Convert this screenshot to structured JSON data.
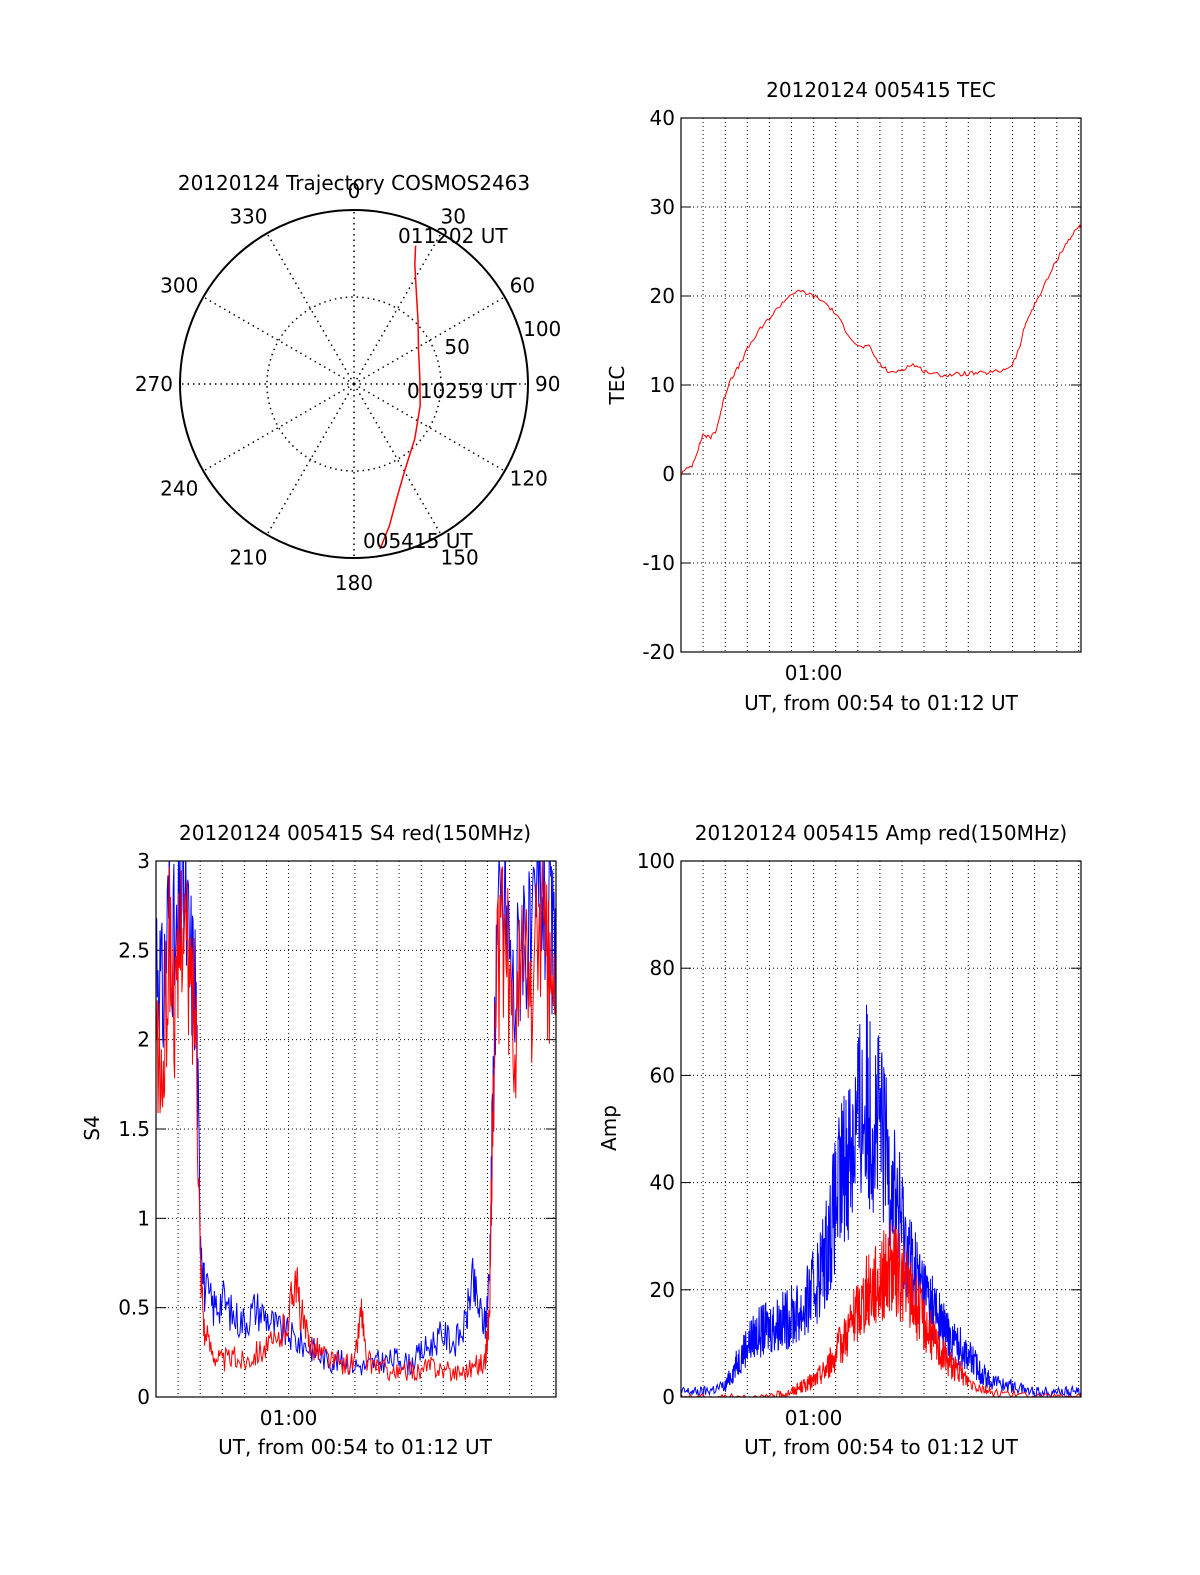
{
  "chart_data": [
    {
      "type": "polar",
      "title": "20120124 Trajectory COSMOS2463",
      "angle_labels": [
        "0",
        "30",
        "60",
        "90",
        "120",
        "150",
        "180",
        "210",
        "240",
        "270",
        "300",
        "330"
      ],
      "radial_labels": [
        "50",
        "100"
      ],
      "radial_max": 100,
      "grid": true,
      "series": [
        {
          "color": "#ff0000",
          "points": [
            {
              "az": 171,
              "r": 96
            },
            {
              "az": 166,
              "r": 84
            },
            {
              "az": 160,
              "r": 71
            },
            {
              "az": 150,
              "r": 58
            },
            {
              "az": 132,
              "r": 47
            },
            {
              "az": 108,
              "r": 40
            },
            {
              "az": 84,
              "r": 38
            },
            {
              "az": 62,
              "r": 42
            },
            {
              "az": 45,
              "r": 52
            },
            {
              "az": 34,
              "r": 64
            },
            {
              "az": 27,
              "r": 77
            },
            {
              "az": 24,
              "r": 87
            }
          ]
        }
      ],
      "annotations": [
        "011202 UT",
        "010259 UT",
        "005415 UT"
      ]
    },
    {
      "type": "line",
      "title": "20120124 005415 TEC",
      "xlabel": "UT, from 00:54 to 01:12 UT",
      "ylabel": "TEC",
      "xlim": [
        0,
        18.1
      ],
      "ylim": [
        -20,
        40
      ],
      "yticks": [
        "-20",
        "-10",
        "0",
        "10",
        "20",
        "30",
        "40"
      ],
      "xtick_labels": [
        {
          "x": 6.0,
          "label": "01:00"
        }
      ],
      "grid": true,
      "series": [
        {
          "color": "#ff0000",
          "x": [
            0,
            0.5,
            0.8,
            1.0,
            1.3,
            1.6,
            1.9,
            2.2,
            2.6,
            3.0,
            3.5,
            4.0,
            4.5,
            5.0,
            5.5,
            6.0,
            6.5,
            7.0,
            7.5,
            8.0,
            8.5,
            9.0,
            9.5,
            10.0,
            10.5,
            11.0,
            11.5,
            12.0,
            12.5,
            13.0,
            13.5,
            14.0,
            14.5,
            15.0,
            15.3,
            15.6,
            16.0,
            16.4,
            16.8,
            17.2,
            17.6,
            18.0,
            18.1
          ],
          "y": [
            0,
            1,
            3,
            4.5,
            4,
            5,
            8,
            10.5,
            12,
            14,
            16,
            17.5,
            19,
            20.3,
            20.5,
            20,
            19.3,
            18,
            16,
            14.3,
            14.3,
            12.3,
            11.3,
            11.8,
            12.3,
            11.6,
            11.2,
            11.1,
            11.2,
            11.3,
            11.3,
            11.4,
            11.6,
            12.3,
            14,
            17,
            19,
            21,
            23,
            25,
            26.5,
            27.8,
            28
          ]
        }
      ]
    },
    {
      "type": "line",
      "title": "20120124 005415 S4 red(150MHz)",
      "xlabel": "UT, from 00:54 to 01:12 UT",
      "ylabel": "S4",
      "xlim": [
        0,
        18.1
      ],
      "ylim": [
        0,
        3
      ],
      "yticks": [
        "0",
        "0.5",
        "1",
        "1.5",
        "2",
        "2.5",
        "3"
      ],
      "xtick_labels": [
        {
          "x": 6.0,
          "label": "01:00"
        }
      ],
      "grid": true,
      "series": [
        {
          "color": "#0000ff",
          "x": [
            0,
            0.3,
            0.6,
            0.9,
            1.2,
            1.5,
            1.8,
            2.0,
            2.2,
            2.6,
            3.0,
            3.5,
            4.0,
            4.5,
            5.0,
            5.5,
            6.0,
            6.5,
            7.0,
            7.5,
            8.0,
            8.5,
            9.0,
            9.5,
            10.0,
            10.5,
            11.0,
            11.5,
            12.0,
            12.5,
            13.0,
            13.5,
            14.0,
            14.3,
            14.6,
            14.9,
            15.1,
            15.2,
            15.4,
            15.8,
            16.2,
            16.6,
            17.0,
            17.4,
            17.8,
            18.1
          ],
          "y": [
            2.6,
            2.2,
            2.8,
            2.4,
            2.9,
            2.5,
            2.3,
            1.0,
            0.6,
            0.5,
            0.55,
            0.45,
            0.42,
            0.5,
            0.45,
            0.38,
            0.35,
            0.3,
            0.28,
            0.22,
            0.2,
            0.2,
            0.18,
            0.17,
            0.2,
            0.2,
            0.22,
            0.18,
            0.25,
            0.3,
            0.35,
            0.3,
            0.4,
            0.65,
            0.5,
            0.4,
            0.7,
            1.4,
            2.5,
            2.8,
            2.2,
            2.7,
            2.4,
            2.9,
            2.6,
            2.4
          ]
        },
        {
          "color": "#ff0000",
          "x": [
            0,
            0.3,
            0.6,
            0.9,
            1.2,
            1.5,
            1.8,
            2.0,
            2.2,
            2.6,
            3.0,
            3.5,
            4.0,
            4.5,
            5.0,
            5.5,
            6.0,
            6.3,
            6.5,
            6.8,
            7.0,
            7.5,
            8.0,
            8.5,
            9.0,
            9.3,
            9.5,
            10.0,
            10.5,
            11.0,
            11.5,
            12.0,
            12.5,
            13.0,
            13.5,
            14.0,
            14.5,
            14.9,
            15.1,
            15.2,
            15.4,
            15.8,
            16.2,
            16.6,
            17.0,
            17.4,
            17.8,
            18.1
          ],
          "y": [
            2.0,
            1.7,
            2.6,
            2.1,
            2.8,
            2.3,
            2.2,
            0.8,
            0.35,
            0.25,
            0.2,
            0.22,
            0.2,
            0.25,
            0.28,
            0.3,
            0.45,
            0.7,
            0.5,
            0.35,
            0.3,
            0.25,
            0.2,
            0.18,
            0.2,
            0.5,
            0.2,
            0.18,
            0.15,
            0.13,
            0.15,
            0.14,
            0.18,
            0.15,
            0.14,
            0.15,
            0.18,
            0.2,
            0.5,
            1.3,
            2.3,
            2.6,
            1.9,
            2.5,
            2.2,
            2.7,
            2.3,
            2.2
          ]
        }
      ]
    },
    {
      "type": "line",
      "title": "20120124 005415 Amp red(150MHz)",
      "xlabel": "UT, from 00:54 to 01:12 UT",
      "ylabel": "Amp",
      "xlim": [
        0,
        18.1
      ],
      "ylim": [
        0,
        100
      ],
      "yticks": [
        "0",
        "20",
        "40",
        "60",
        "80",
        "100"
      ],
      "xtick_labels": [
        {
          "x": 6.0,
          "label": "01:00"
        }
      ],
      "grid": true,
      "series": [
        {
          "color": "#0000ff",
          "x": [
            0,
            1,
            2,
            2.5,
            3,
            3.5,
            4,
            4.5,
            5,
            5.5,
            6,
            6.5,
            7,
            7.5,
            8,
            8.5,
            9,
            9.5,
            10,
            10.5,
            11,
            11.5,
            12,
            12.5,
            13,
            13.5,
            14,
            15,
            16,
            17,
            18.1
          ],
          "y": [
            1,
            1,
            2,
            6,
            10,
            12,
            13,
            14,
            15,
            16,
            20,
            26,
            36,
            45,
            52,
            55,
            50,
            42,
            32,
            24,
            20,
            16,
            12,
            10,
            8,
            5,
            3,
            2,
            1,
            1,
            1
          ]
        },
        {
          "color": "#ff0000",
          "x": [
            0,
            2,
            4,
            5,
            5.5,
            6,
            6.5,
            7,
            7.5,
            8,
            8.5,
            9,
            9.5,
            10,
            10.5,
            11,
            11.5,
            12,
            12.5,
            13,
            14,
            16,
            18.1
          ],
          "y": [
            0,
            0,
            0,
            1,
            2,
            3,
            5,
            8,
            12,
            16,
            20,
            22,
            24,
            22,
            18,
            14,
            10,
            7,
            5,
            3,
            1,
            0,
            0
          ]
        }
      ]
    }
  ]
}
